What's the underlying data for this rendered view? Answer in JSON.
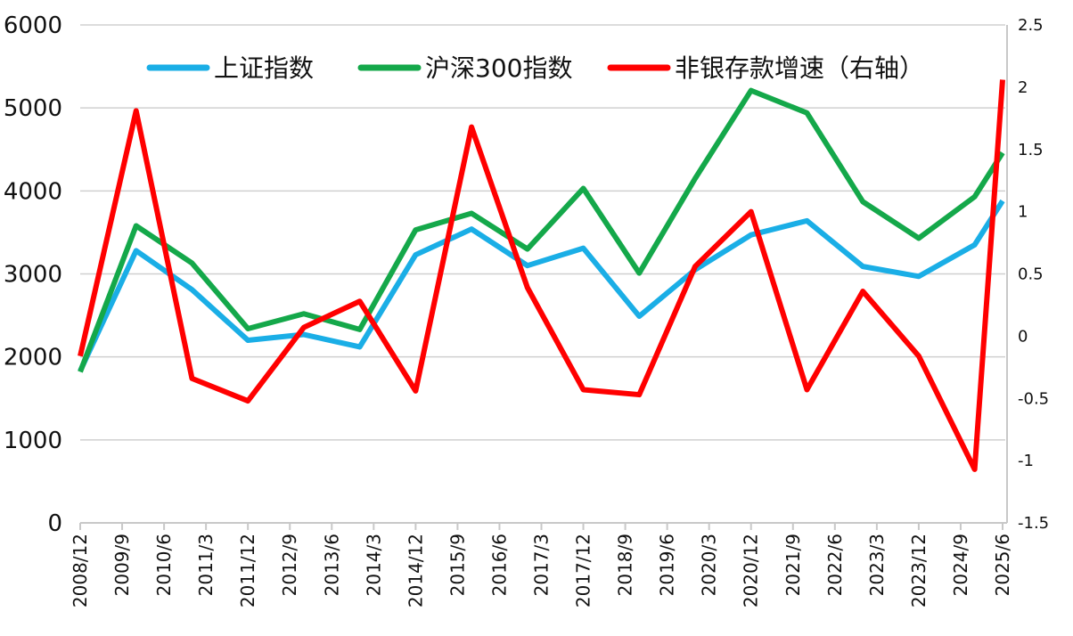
{
  "chart_data": {
    "type": "line",
    "x": [
      "2008/12",
      "2009/12",
      "2010/12",
      "2011/12",
      "2012/12",
      "2013/12",
      "2014/12",
      "2015/12",
      "2016/12",
      "2017/12",
      "2018/12",
      "2019/12",
      "2020/12",
      "2021/12",
      "2022/12",
      "2023/12",
      "2024/12",
      "2025/6"
    ],
    "series": [
      {
        "name": "上证指数",
        "color": "#1aaee6",
        "values": [
          1830,
          3280,
          2810,
          2200,
          2270,
          2120,
          3230,
          3540,
          3100,
          3310,
          2490,
          3050,
          3470,
          3640,
          3090,
          2970,
          3350,
          3880
        ]
      },
      {
        "name": "沪深300指数",
        "color": "#14a84a",
        "values": [
          1820,
          3580,
          3130,
          2340,
          2520,
          2330,
          3530,
          3730,
          3300,
          4030,
          3010,
          4150,
          5210,
          4940,
          3870,
          3430,
          3930,
          4460
        ]
      },
      {
        "name": "非银存款增速（右轴）",
        "color": "#ff0000",
        "axis": "y2",
        "values": [
          -0.16,
          1.81,
          -0.34,
          -0.52,
          0.07,
          0.28,
          -0.44,
          1.68,
          0.39,
          -0.43,
          -0.47,
          0.56,
          1.0,
          -0.43,
          0.36,
          -0.16,
          -1.07,
          2.06
        ]
      }
    ],
    "xticks": [
      "2008/12",
      "2009/9",
      "2010/6",
      "2011/3",
      "2011/12",
      "2012/9",
      "2013/6",
      "2014/3",
      "2014/12",
      "2015/9",
      "2016/6",
      "2017/3",
      "2017/12",
      "2018/9",
      "2019/6",
      "2020/3",
      "2020/12",
      "2021/9",
      "2022/6",
      "2023/3",
      "2023/12",
      "2024/9",
      "2025/6"
    ],
    "ylim": [
      0,
      6000
    ],
    "yticks": [
      0,
      1000,
      2000,
      3000,
      4000,
      5000,
      6000
    ],
    "y2lim": [
      -1.5,
      2.5
    ],
    "y2ticks": [
      -1.5,
      -1,
      -0.5,
      0,
      0.5,
      1,
      1.5,
      2,
      2.5
    ],
    "grid": true,
    "legend": "top"
  }
}
